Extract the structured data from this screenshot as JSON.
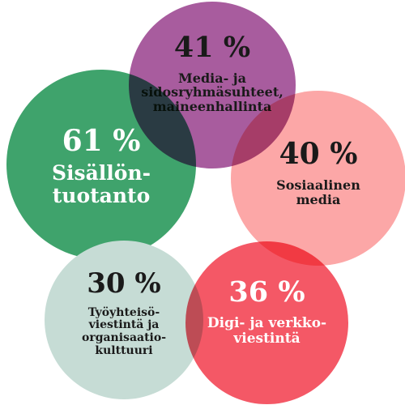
{
  "chart_data": {
    "type": "bubble",
    "title": "",
    "items": [
      {
        "value": 61,
        "value_text": "61 %",
        "label": "Sisällön-\ntuotanto",
        "color": "#3fa36c"
      },
      {
        "value": 41,
        "value_text": "41 %",
        "label": "Media- ja\nsidosryhmäsuhteet,\nmaineenhallinta",
        "color": "#a85c9e"
      },
      {
        "value": 40,
        "value_text": "40 %",
        "label": "Sosiaalinen\nmedia",
        "color": "#fca7a7"
      },
      {
        "value": 30,
        "value_text": "30 %",
        "label": "Työyhteisö-\nviestintä ja\norganisaatio-\nkulttuuri",
        "color": "#c6dcd5"
      },
      {
        "value": 36,
        "value_text": "36 %",
        "label": "Digi- ja verkko-\nviestintä",
        "color": "#f45866"
      }
    ]
  }
}
